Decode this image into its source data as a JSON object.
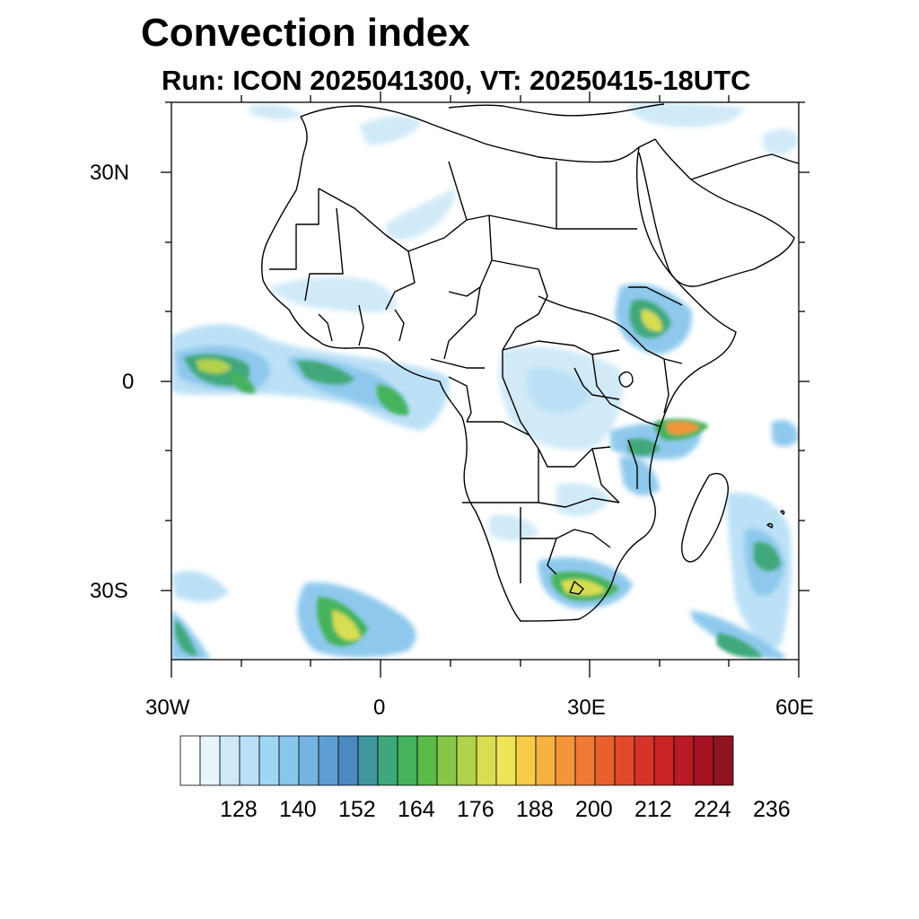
{
  "title": "Convection index",
  "subtitle": "Run: ICON 2025041300,  VT: 20250415-18UTC",
  "map": {
    "lat_range": [
      -40,
      40
    ],
    "lon_range": [
      -30,
      60
    ],
    "lat_labels": [
      "30N",
      "0",
      "30S"
    ],
    "lon_labels": [
      "30W",
      "0",
      "30E",
      "60E"
    ]
  },
  "colorbar": {
    "colors": [
      "#ffffff",
      "#e8f4fc",
      "#cfe9f8",
      "#b9e0f6",
      "#9fd6f4",
      "#88c6ec",
      "#75b4e2",
      "#5f9ed4",
      "#4a8ac0",
      "#3f96a0",
      "#3fa87a",
      "#44b35c",
      "#5bbb48",
      "#88c64a",
      "#b2d24e",
      "#d8de52",
      "#efe356",
      "#f6cc4a",
      "#f7b042",
      "#f4953a",
      "#ef7a34",
      "#e9602e",
      "#e04a2a",
      "#d63428",
      "#c92426",
      "#b81a26",
      "#a61424",
      "#8e1420"
    ],
    "labels": [
      "128",
      "140",
      "152",
      "164",
      "176",
      "188",
      "200",
      "212",
      "224",
      "236"
    ]
  }
}
